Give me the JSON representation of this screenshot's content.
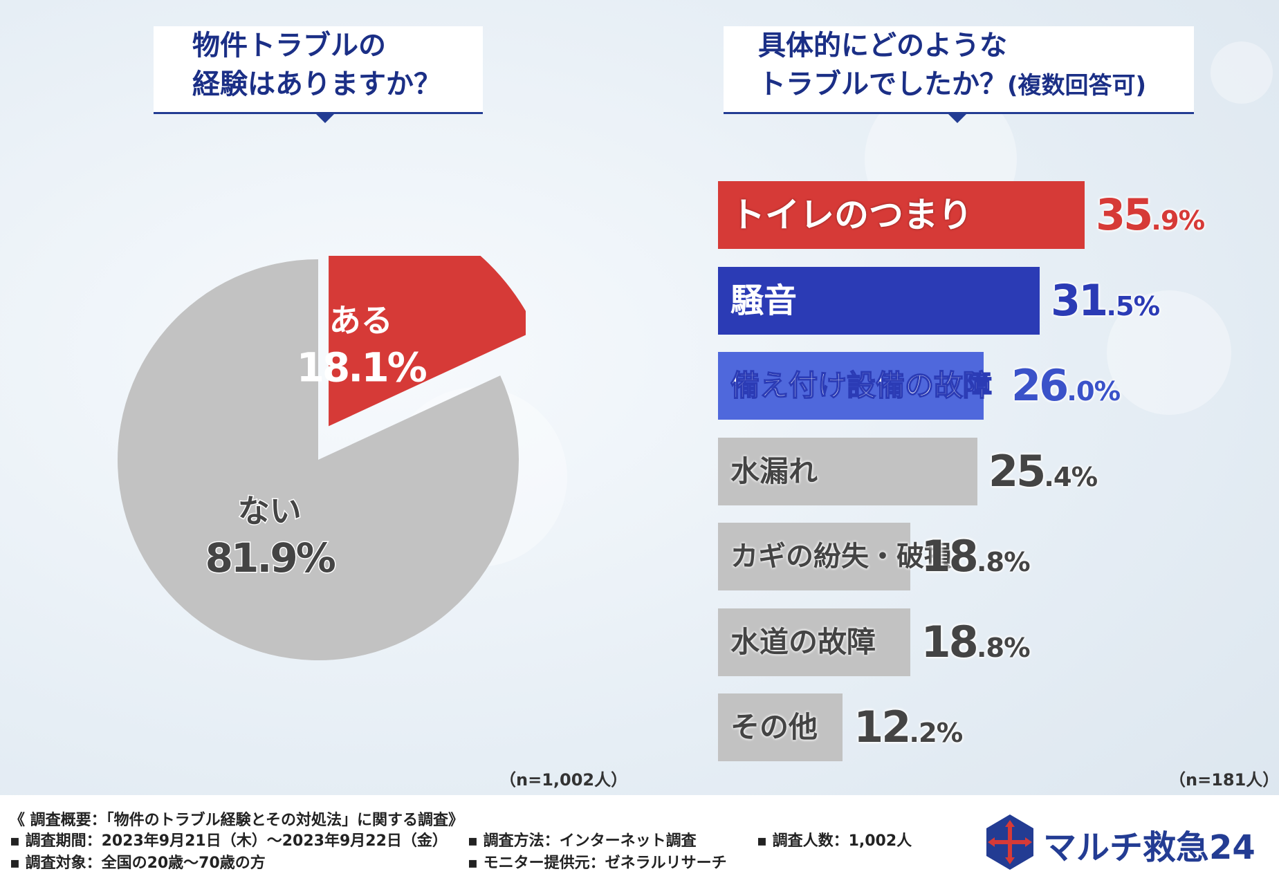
{
  "q1": {
    "line1": "物件トラブルの",
    "line2": "経験はありますか？"
  },
  "q2": {
    "line1": "具体的にどのような",
    "line2": "トラブルでしたか？",
    "note": "(複数回答可)"
  },
  "n_left": "（n=1,002人）",
  "n_right": "（n=181人）",
  "chart_data": [
    {
      "type": "pie",
      "slices": [
        {
          "label": "ある",
          "value": 18.1,
          "value_text": "18.1%",
          "color": "#d63a37"
        },
        {
          "label": "ない",
          "value": 81.9,
          "value_text": "81.9%",
          "color": "#c2c2c2"
        }
      ]
    },
    {
      "type": "bar",
      "orientation": "horizontal",
      "categories": [
        "トイレのつまり",
        "騒音",
        "備え付け設備の故障",
        "水漏れ",
        "カギの紛失・破損",
        "水道の故障",
        "その他"
      ],
      "values": [
        35.9,
        31.5,
        26.0,
        25.4,
        18.8,
        18.8,
        12.2
      ],
      "value_texts": [
        "35.9%",
        "31.5%",
        "26.0%",
        "25.4%",
        "18.8%",
        "18.8%",
        "12.2%"
      ],
      "colors": [
        "#d63a37",
        "#2b3bb5",
        "#4f68dc",
        "#c2c2c2",
        "#c2c2c2",
        "#c2c2c2",
        "#c2c2c2"
      ]
    }
  ],
  "footer": {
    "title": "《 調査概要：「物件のトラブル経験とその対処法」に関する調査》",
    "period": "▪ 調査期間：2023年9月21日（木）〜2023年9月22日（金）",
    "method": "▪ 調査方法：インターネット調査",
    "count": "▪ 調査人数：1,002人",
    "target": "▪ 調査対象：全国の20歳〜70歳の方",
    "provider": "▪ モニター提供元：ゼネラルリサーチ"
  },
  "logo": {
    "text": "マルチ救急24"
  }
}
